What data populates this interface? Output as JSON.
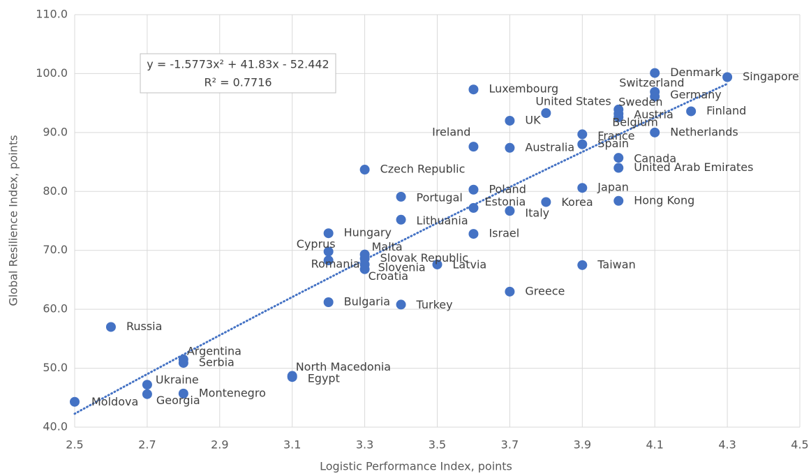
{
  "chart_data": {
    "type": "scatter",
    "x_label": "Logistic Performance Index, points",
    "y_label": "Global Resilience Index, points",
    "color": "#4472c4",
    "grid": true,
    "xlim": [
      2.5,
      4.5
    ],
    "xticks": [
      2.5,
      2.7,
      2.9,
      3.1,
      3.3,
      3.5,
      3.7,
      3.9,
      4.1,
      4.3,
      4.5
    ],
    "ylim": [
      40,
      110
    ],
    "yticks": [
      {
        "value": 40,
        "label": "40.0"
      },
      {
        "value": 50,
        "label": "50.0"
      },
      {
        "value": 60,
        "label": "60.0"
      },
      {
        "value": 70,
        "label": "70.0"
      },
      {
        "value": 80,
        "label": "80.0"
      },
      {
        "value": 90,
        "label": "90.0"
      },
      {
        "value": 100,
        "label": "100.0"
      },
      {
        "value": 110,
        "label": "110.0"
      }
    ],
    "labels": [
      "Denmark",
      "Singapore",
      "Switzerland",
      "Germany",
      "Finland",
      "Luxembourg",
      "United States",
      "Sweden",
      "Austria",
      "Belgium",
      "Netherlands",
      "UK",
      "France",
      "Spain",
      "Ireland",
      "Australia",
      "Canada",
      "United Arab Emirates",
      "Czech Republic",
      "Poland",
      "Japan",
      "Portugal",
      "Korea",
      "Hong Kong",
      "Estonia",
      "Italy",
      "Lithuania",
      "Hungary",
      "Israel",
      "Cyprus",
      "Malta",
      "Slovak Republic",
      "Romania",
      "Slovenia",
      "Croatia",
      "Latvia",
      "Taiwan",
      "Greece",
      "Bulgaria",
      "Turkey",
      "Russia",
      "Argentina",
      "Serbia",
      "North Macedonia",
      "Egypt",
      "Ukraine",
      "Georgia",
      "Montenegro",
      "Moldova"
    ],
    "x": [
      4.1,
      4.3,
      4.1,
      4.1,
      4.2,
      3.6,
      3.8,
      4.0,
      4.0,
      4.0,
      4.1,
      3.7,
      3.9,
      3.9,
      3.6,
      3.7,
      4.0,
      4.0,
      3.3,
      3.6,
      3.9,
      3.4,
      3.8,
      4.0,
      3.6,
      3.7,
      3.4,
      3.2,
      3.6,
      3.2,
      3.3,
      3.3,
      3.2,
      3.3,
      3.3,
      3.5,
      3.9,
      3.7,
      3.2,
      3.4,
      2.6,
      2.8,
      2.8,
      3.1,
      3.1,
      2.7,
      2.7,
      2.8,
      2.5
    ],
    "values": [
      100.1,
      99.4,
      96.9,
      96.1,
      93.6,
      97.3,
      93.3,
      93.9,
      93.2,
      92.6,
      90.0,
      92.0,
      89.7,
      88.0,
      87.6,
      87.4,
      85.7,
      84.0,
      83.7,
      80.3,
      80.6,
      79.1,
      78.2,
      78.4,
      77.2,
      76.7,
      75.2,
      72.9,
      72.8,
      69.8,
      69.3,
      68.6,
      68.3,
      67.6,
      66.8,
      67.6,
      67.5,
      63.0,
      61.2,
      60.8,
      57.0,
      51.5,
      50.9,
      48.7,
      48.5,
      47.2,
      45.6,
      45.7,
      44.3
    ],
    "trendline": {
      "coefficients": [
        -1.5773,
        41.83,
        -52.442
      ],
      "equation": "y = -1.5773x² + 41.83x - 52.442",
      "r2": "R² = 0.7716"
    }
  }
}
